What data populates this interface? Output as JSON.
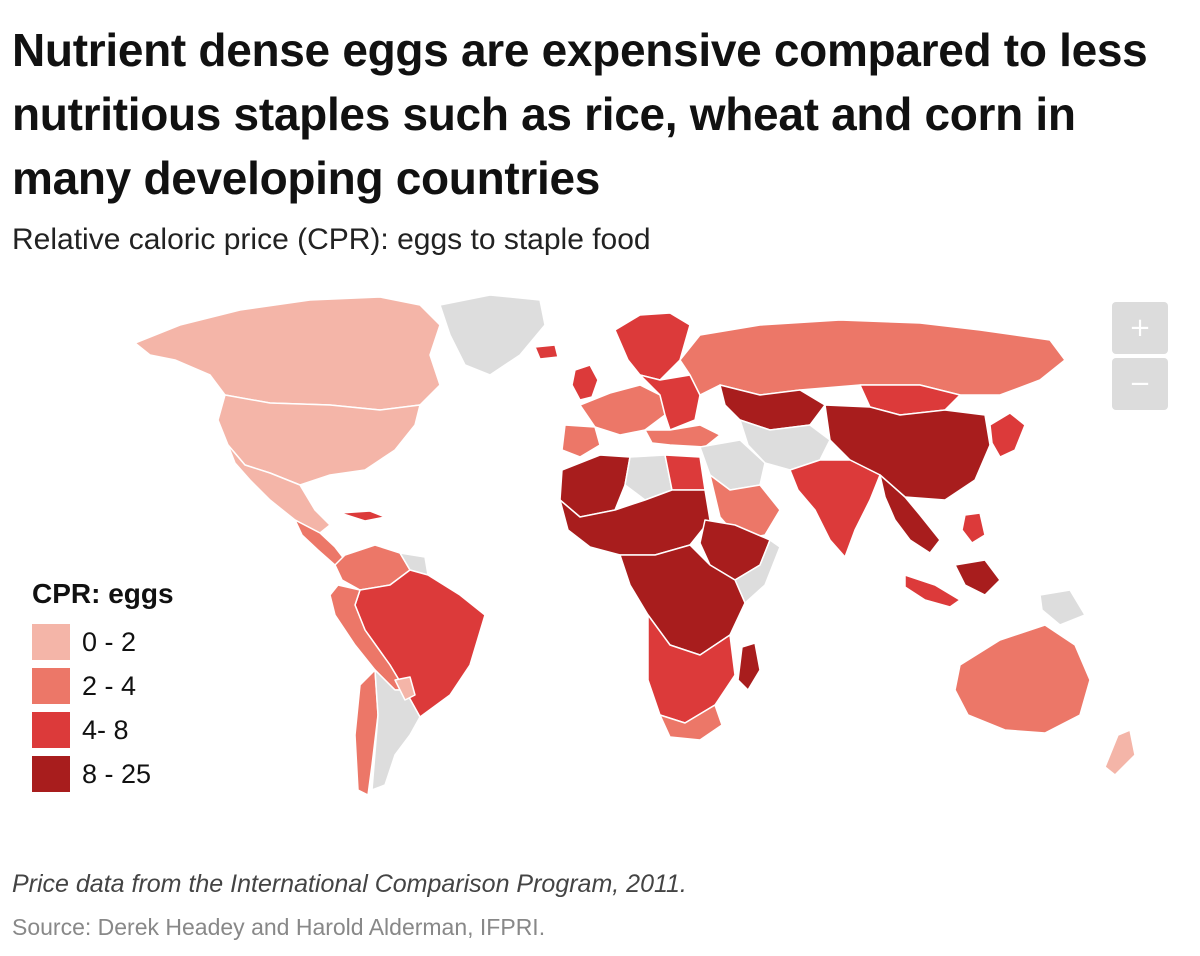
{
  "title": "Nutrient dense eggs are expensive compared to less nutritious staples such as rice, wheat and corn in many developing countries",
  "subtitle": "Relative caloric price (CPR): eggs to staple food",
  "zoom": {
    "in_label": "+",
    "out_label": "−"
  },
  "legend": {
    "title": "CPR: eggs",
    "items": [
      {
        "label": "0 - 2",
        "color": "#f4b5a8"
      },
      {
        "label": "2 - 4",
        "color": "#ec7768"
      },
      {
        "label": "4- 8",
        "color": "#dc3a3a"
      },
      {
        "label": "8 - 25",
        "color": "#a81d1d"
      }
    ]
  },
  "no_data_color": "#dddddd",
  "note": "Price data from the International Comparison Program, 2011.",
  "source": "Source: Derek Headey and Harold Alderman, IFPRI."
}
